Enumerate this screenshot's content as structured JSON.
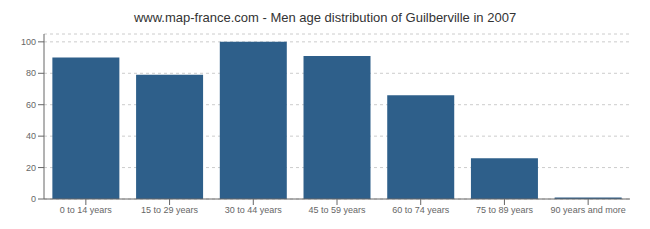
{
  "chart_data": {
    "type": "bar",
    "title": "www.map-france.com - Men age distribution of Guilberville in 2007",
    "categories": [
      "0 to 14 years",
      "15 to 29 years",
      "30 to 44 years",
      "45 to 59 years",
      "60 to 74 years",
      "75 to 89 years",
      "90 years and more"
    ],
    "values": [
      90,
      79,
      100,
      91,
      66,
      26,
      1
    ],
    "color": "#2e5f8a",
    "ylim": [
      0,
      105
    ],
    "yticks": [
      0,
      20,
      40,
      60,
      80,
      100
    ],
    "grid": true
  }
}
